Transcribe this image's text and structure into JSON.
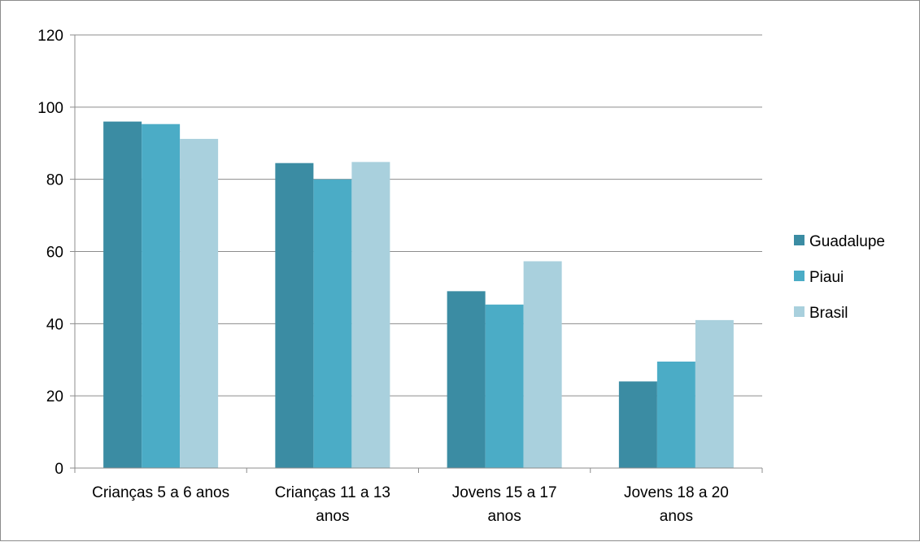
{
  "chart_data": {
    "type": "bar",
    "categories": [
      [
        "Crianças 5 a 6 anos"
      ],
      [
        "Crianças 11 a 13",
        "anos"
      ],
      [
        "Jovens 15 a 17",
        "anos"
      ],
      [
        "Jovens 18 a 20",
        "anos"
      ]
    ],
    "series": [
      {
        "name": "Guadalupe",
        "color": "#3b8ca3",
        "values": [
          96,
          84.5,
          49,
          24
        ]
      },
      {
        "name": "Piaui",
        "color": "#4bacc6",
        "values": [
          95.3,
          80,
          45.3,
          29.5
        ]
      },
      {
        "name": "Brasil",
        "color": "#a9d0dd",
        "values": [
          91.2,
          84.8,
          57.3,
          41
        ]
      }
    ],
    "ylim": [
      0,
      120
    ],
    "yticks": [
      0,
      20,
      40,
      60,
      80,
      100,
      120
    ],
    "grid": true,
    "legend": "right",
    "title": "",
    "xlabel": "",
    "ylabel": ""
  }
}
